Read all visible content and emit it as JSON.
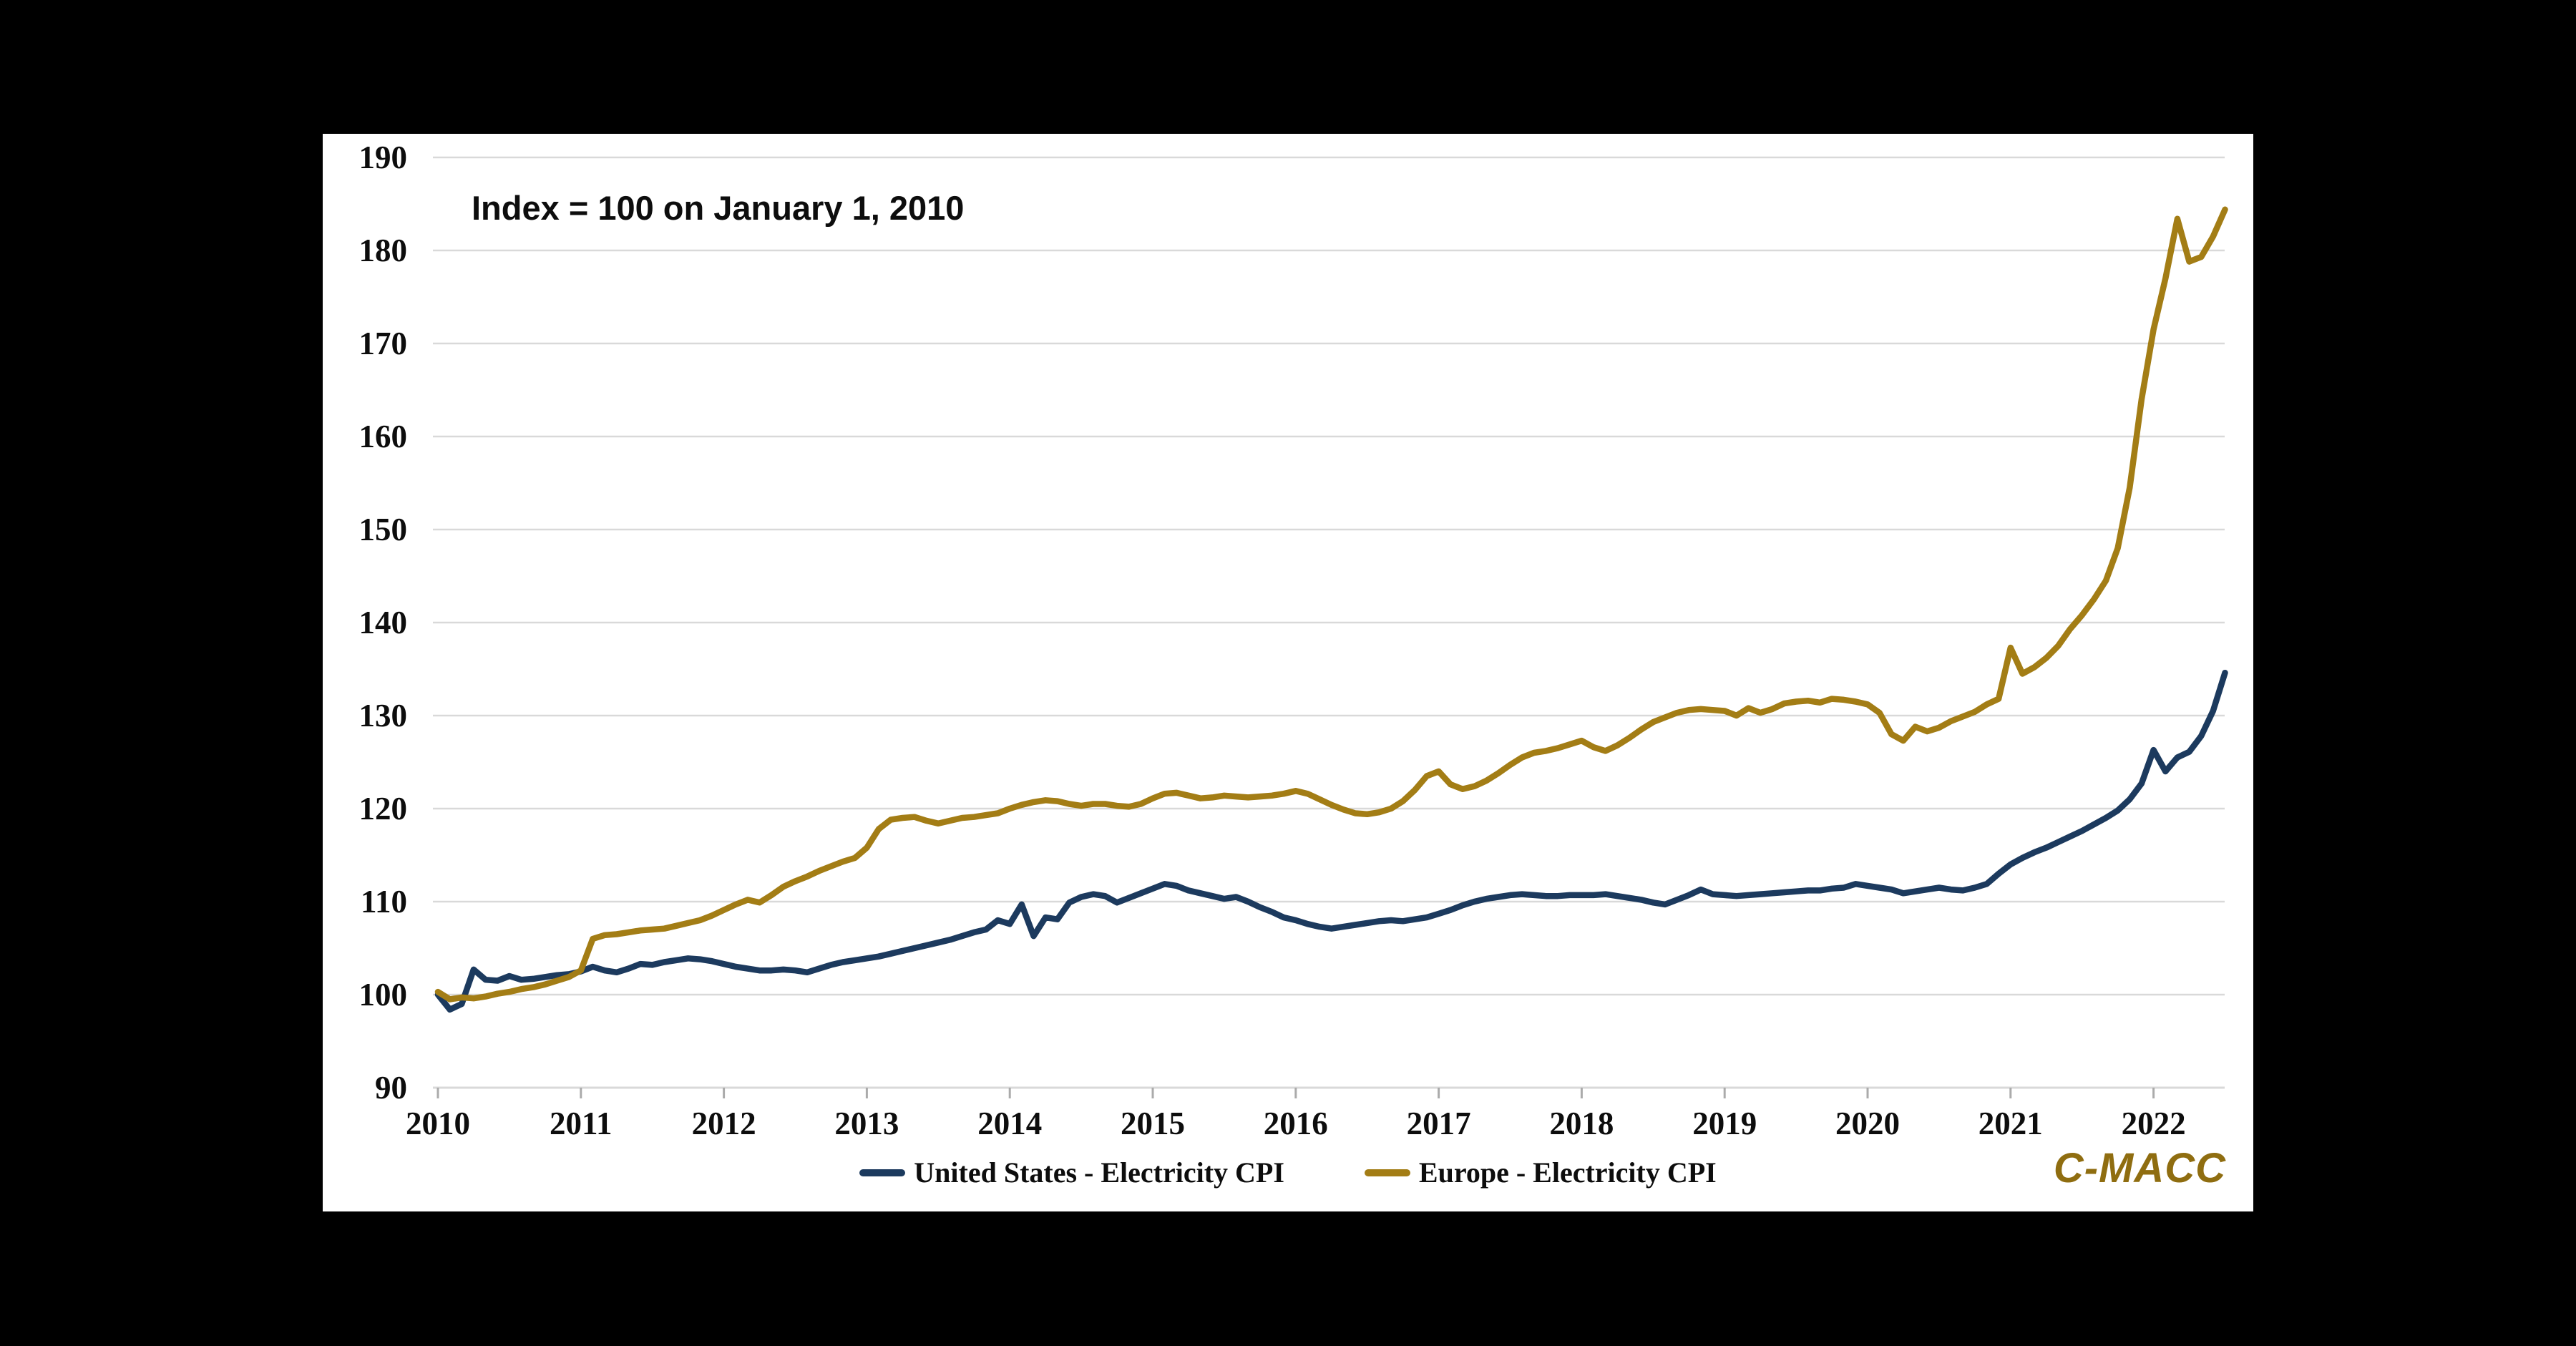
{
  "title": "Index = 100 on January 1, 2010",
  "watermark": "C-MACC",
  "legend": [
    {
      "label": "United States - Electricity CPI",
      "color": "#1c3a5e"
    },
    {
      "label": "Europe - Electricity CPI",
      "color": "#a37d15"
    }
  ],
  "colors": {
    "us_line": "#1c3a5e",
    "europe_line": "#a37d15",
    "watermark_gold": "#8f6d10",
    "gridline": "#d9d9d9",
    "tick": "#ababab",
    "background": "#000000",
    "panel": "#ffffff",
    "text": "#0d0d0d"
  },
  "chart_data": {
    "type": "line",
    "title": "Index = 100 on January 1, 2010",
    "xlabel": "",
    "ylabel": "",
    "ylim": [
      90,
      190
    ],
    "grid": true,
    "legend_position": "bottom",
    "x_unit": "monthly points from January 2010 to July 2022",
    "x_tick_labels": [
      "2010",
      "2011",
      "2012",
      "2013",
      "2014",
      "2015",
      "2016",
      "2017",
      "2018",
      "2019",
      "2020",
      "2021",
      "2022"
    ],
    "y_tick_labels": [
      "190",
      "180",
      "170",
      "160",
      "150",
      "140",
      "130",
      "120",
      "110",
      "100",
      "90"
    ],
    "series": [
      {
        "name": "United States - Electricity CPI",
        "color": "#1c3a5e",
        "values": [
          100.0,
          98.4,
          99.0,
          102.7,
          101.6,
          101.5,
          102.0,
          101.6,
          101.7,
          101.9,
          102.1,
          102.2,
          102.5,
          103.0,
          102.6,
          102.4,
          102.8,
          103.3,
          103.2,
          103.5,
          103.7,
          103.9,
          103.8,
          103.6,
          103.3,
          103.0,
          102.8,
          102.6,
          102.6,
          102.7,
          102.6,
          102.4,
          102.8,
          103.2,
          103.5,
          103.7,
          103.9,
          104.1,
          104.4,
          104.7,
          105.0,
          105.3,
          105.6,
          105.9,
          106.3,
          106.7,
          107.0,
          108.0,
          107.6,
          109.7,
          106.3,
          108.3,
          108.1,
          109.9,
          110.5,
          110.8,
          110.6,
          109.9,
          110.4,
          110.9,
          111.4,
          111.9,
          111.7,
          111.2,
          110.9,
          110.6,
          110.3,
          110.5,
          110.0,
          109.4,
          108.9,
          108.3,
          108.0,
          107.6,
          107.3,
          107.1,
          107.3,
          107.5,
          107.7,
          107.9,
          108.0,
          107.9,
          108.1,
          108.3,
          108.7,
          109.1,
          109.6,
          110.0,
          110.3,
          110.5,
          110.7,
          110.8,
          110.7,
          110.6,
          110.6,
          110.7,
          110.7,
          110.7,
          110.8,
          110.6,
          110.4,
          110.2,
          109.9,
          109.7,
          110.2,
          110.7,
          111.3,
          110.8,
          110.7,
          110.6,
          110.7,
          110.8,
          110.9,
          111.0,
          111.1,
          111.2,
          111.2,
          111.4,
          111.5,
          111.9,
          111.7,
          111.5,
          111.3,
          110.9,
          111.1,
          111.3,
          111.5,
          111.3,
          111.2,
          111.5,
          111.9,
          113.0,
          114.0,
          114.7,
          115.3,
          115.8,
          116.4,
          117.0,
          117.6,
          118.3,
          119.0,
          119.8,
          121.0,
          122.7,
          126.3,
          124.0,
          125.5,
          126.1,
          127.8,
          130.5,
          134.6
        ]
      },
      {
        "name": "Europe - Electricity CPI",
        "color": "#a37d15",
        "values": [
          100.3,
          99.5,
          99.7,
          99.6,
          99.8,
          100.1,
          100.3,
          100.6,
          100.8,
          101.1,
          101.5,
          101.9,
          102.6,
          106.0,
          106.4,
          106.5,
          106.7,
          106.9,
          107.0,
          107.1,
          107.4,
          107.7,
          108.0,
          108.5,
          109.1,
          109.7,
          110.2,
          109.9,
          110.7,
          111.6,
          112.2,
          112.7,
          113.3,
          113.8,
          114.3,
          114.7,
          115.8,
          117.8,
          118.8,
          119.0,
          119.1,
          118.7,
          118.4,
          118.7,
          119.0,
          119.1,
          119.3,
          119.5,
          120.0,
          120.4,
          120.7,
          120.9,
          120.8,
          120.5,
          120.3,
          120.5,
          120.5,
          120.3,
          120.2,
          120.5,
          121.1,
          121.6,
          121.7,
          121.4,
          121.1,
          121.2,
          121.4,
          121.3,
          121.2,
          121.3,
          121.4,
          121.6,
          121.9,
          121.6,
          121.0,
          120.4,
          119.9,
          119.5,
          119.4,
          119.6,
          120.0,
          120.8,
          122.0,
          123.5,
          124.0,
          122.6,
          122.1,
          122.4,
          123.0,
          123.8,
          124.7,
          125.5,
          126.0,
          126.2,
          126.5,
          126.9,
          127.3,
          126.6,
          126.2,
          126.8,
          127.6,
          128.5,
          129.3,
          129.8,
          130.3,
          130.6,
          130.7,
          130.6,
          130.5,
          130.0,
          130.8,
          130.3,
          130.7,
          131.3,
          131.5,
          131.6,
          131.4,
          131.8,
          131.7,
          131.5,
          131.2,
          130.3,
          128.0,
          127.3,
          128.8,
          128.3,
          128.7,
          129.4,
          129.9,
          130.4,
          131.2,
          131.8,
          137.3,
          134.5,
          135.2,
          136.2,
          137.5,
          139.3,
          140.8,
          142.5,
          144.5,
          148.0,
          154.5,
          164.0,
          171.5,
          177.0,
          183.4,
          178.8,
          179.3,
          181.5,
          184.4
        ]
      }
    ]
  }
}
